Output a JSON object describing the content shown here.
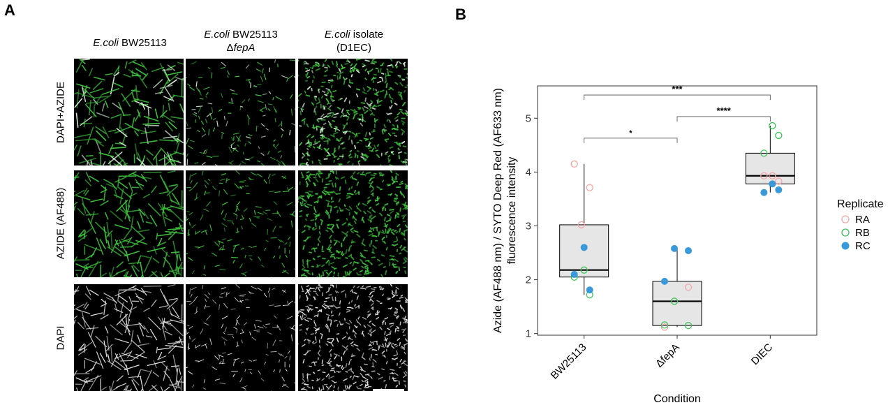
{
  "panel_a": {
    "letter": "A",
    "columns": [
      {
        "line1_italic": "E.coli",
        "line1_rest": " BW25113",
        "line2_prefix": "",
        "line2_italic": ""
      },
      {
        "line1_italic": "E.coli",
        "line1_rest": " BW25113",
        "line2_prefix": "Δ",
        "line2_italic": "fepA"
      },
      {
        "line1_italic": "E.coli",
        "line1_rest": " isolate",
        "line2_prefix": "(D1EC)",
        "line2_italic": ""
      }
    ],
    "rows": [
      "DAPI+AZIDE",
      "AZIDE (AF488)",
      "DAPI"
    ],
    "colors": {
      "azide": "#3ec43e",
      "dapi": "#e6e6e6"
    }
  },
  "chart_data": {
    "letter": "B",
    "type": "box",
    "xlabel": "Condition",
    "ylabel_line1": "Azide (AF488 nm) / SYTO Deep Red (AF633 nm)",
    "ylabel_line2": "fluorescence intensity",
    "ylim": [
      0.97,
      5.6
    ],
    "yticks": [
      1,
      2,
      3,
      4,
      5
    ],
    "categories": [
      "BW25113",
      "ΔfepA",
      "DIEC"
    ],
    "boxes": [
      {
        "category": "BW25113",
        "whisker_low": 1.72,
        "q1": 2.05,
        "median": 2.18,
        "q3": 3.02,
        "whisker_high": 4.15
      },
      {
        "category": "ΔfepA",
        "whisker_low": 1.12,
        "q1": 1.15,
        "median": 1.6,
        "q3": 1.97,
        "whisker_high": 2.58
      },
      {
        "category": "DIEC",
        "whisker_low": 3.62,
        "q1": 3.78,
        "median": 3.93,
        "q3": 4.35,
        "whisker_high": 4.86
      }
    ],
    "series": [
      {
        "name": "RA",
        "color": "#f4a6a6",
        "marker": "open",
        "points": [
          {
            "category": "BW25113",
            "y": 4.15
          },
          {
            "category": "BW25113",
            "y": 3.71
          },
          {
            "category": "BW25113",
            "y": 3.02
          },
          {
            "category": "ΔfepA",
            "y": 1.86
          },
          {
            "category": "ΔfepA",
            "y": 1.12
          },
          {
            "category": "DIEC",
            "y": 3.93
          },
          {
            "category": "DIEC",
            "y": 3.83
          },
          {
            "category": "DIEC",
            "y": 3.93
          }
        ]
      },
      {
        "name": "RB",
        "color": "#3cc45a",
        "marker": "open",
        "points": [
          {
            "category": "BW25113",
            "y": 2.18
          },
          {
            "category": "BW25113",
            "y": 2.05
          },
          {
            "category": "BW25113",
            "y": 1.72
          },
          {
            "category": "ΔfepA",
            "y": 1.6
          },
          {
            "category": "ΔfepA",
            "y": 1.15
          },
          {
            "category": "ΔfepA",
            "y": 1.16
          },
          {
            "category": "DIEC",
            "y": 4.86
          },
          {
            "category": "DIEC",
            "y": 4.68
          },
          {
            "category": "DIEC",
            "y": 4.35
          }
        ]
      },
      {
        "name": "RC",
        "color": "#3a9ad9",
        "marker": "filled",
        "points": [
          {
            "category": "BW25113",
            "y": 2.6
          },
          {
            "category": "BW25113",
            "y": 2.1
          },
          {
            "category": "BW25113",
            "y": 1.81
          },
          {
            "category": "ΔfepA",
            "y": 2.58
          },
          {
            "category": "ΔfepA",
            "y": 2.54
          },
          {
            "category": "ΔfepA",
            "y": 1.97
          },
          {
            "category": "DIEC",
            "y": 3.78
          },
          {
            "category": "DIEC",
            "y": 3.67
          },
          {
            "category": "DIEC",
            "y": 3.62
          }
        ]
      }
    ],
    "significance": [
      {
        "from": "BW25113",
        "to": "DIEC",
        "y": 5.43,
        "label": "***"
      },
      {
        "from": "ΔfepA",
        "to": "DIEC",
        "y": 5.03,
        "label": "****"
      },
      {
        "from": "BW25113",
        "to": "ΔfepA",
        "y": 4.63,
        "label": "*"
      }
    ],
    "legend": {
      "title": "Replicate",
      "position": "right"
    },
    "grid": false
  }
}
